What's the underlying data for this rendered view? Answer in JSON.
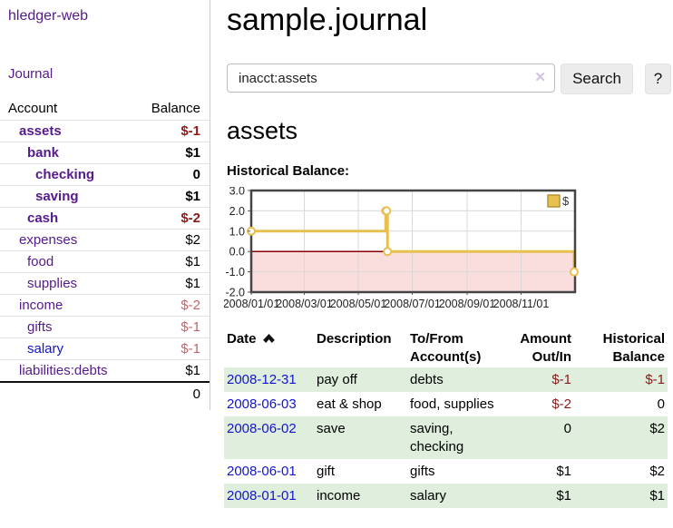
{
  "app": {
    "brand": "hledger-web"
  },
  "colors": {
    "link_visited": "#551a8b",
    "link_unvisited": "#1414cc",
    "negative": "#8b1a1a",
    "negative_muted": "#c0686a",
    "row_stripe": "#dfeedd",
    "chart_line": "#e7c050",
    "chart_negative_region": "#fadddd",
    "chart_zero_line": "#8b0000"
  },
  "sidebar": {
    "nav": {
      "journal": "Journal"
    },
    "tree": {
      "header": {
        "account": "Account",
        "balance": "Balance"
      },
      "accounts": [
        {
          "name": "assets",
          "balance": "$-1",
          "level": 1,
          "selected": true,
          "negative": true
        },
        {
          "name": "bank",
          "balance": "$1",
          "level": 2,
          "selected": true,
          "negative": false
        },
        {
          "name": "checking",
          "balance": "0",
          "level": 3,
          "selected": true,
          "negative": false
        },
        {
          "name": "saving",
          "balance": "$1",
          "level": 3,
          "selected": true,
          "negative": false
        },
        {
          "name": "cash",
          "balance": "$-2",
          "level": 2,
          "selected": true,
          "negative": true
        },
        {
          "name": "expenses",
          "balance": "$2",
          "level": 1,
          "selected": false,
          "negative": false
        },
        {
          "name": "food",
          "balance": "$1",
          "level": 2,
          "selected": false,
          "negative": false
        },
        {
          "name": "supplies",
          "balance": "$1",
          "level": 2,
          "selected": false,
          "negative": false
        },
        {
          "name": "income",
          "balance": "$-2",
          "level": 1,
          "selected": false,
          "negative": true
        },
        {
          "name": "gifts",
          "balance": "$-1",
          "level": 2,
          "selected": false,
          "negative": true
        },
        {
          "name": "salary",
          "balance": "$-1",
          "level": 2,
          "selected": false,
          "negative": true,
          "link_style": "unvisited"
        },
        {
          "name": "liabilities:debts",
          "balance": "$1",
          "level": 1,
          "selected": false,
          "negative": false
        }
      ],
      "total": "0"
    }
  },
  "main": {
    "title": "sample.journal",
    "search": {
      "value": "inacct:assets",
      "clear": "✕",
      "search_label": "Search",
      "help_label": "?"
    },
    "account": {
      "heading": "assets",
      "chart_caption": "Historical Balance:"
    }
  },
  "chart_data": {
    "type": "line",
    "step": true,
    "title": "Historical Balance",
    "series": [
      {
        "name": "$",
        "color": "#e7c050",
        "marker": "open-circle",
        "points": [
          {
            "x": "2008-01-01",
            "y": 1
          },
          {
            "x": "2008-06-01",
            "y": 2
          },
          {
            "x": "2008-06-02",
            "y": 2
          },
          {
            "x": "2008-06-03",
            "y": 0
          },
          {
            "x": "2008-12-31",
            "y": -1
          }
        ]
      }
    ],
    "x_range": [
      "2008-01-01",
      "2009-01-01"
    ],
    "ylim": [
      -2,
      3
    ],
    "yticks": [
      3.0,
      2.0,
      1.0,
      0.0,
      -1.0,
      -2.0
    ],
    "xtick_dates": [
      "2008-01-01",
      "2008-03-01",
      "2008-05-01",
      "2008-07-01",
      "2008-09-01",
      "2008-11-01"
    ],
    "xtick_labels": [
      "2008/01/01",
      "2008/03/01",
      "2008/05/01",
      "2008/07/01",
      "2008/09/01",
      "2008/11/01"
    ],
    "legend": {
      "position": "top-right",
      "label": "$"
    },
    "grid": true,
    "negative_fill": "#fadddd",
    "zero_line": "#8b0000"
  },
  "register": {
    "columns": [
      {
        "label": "Date",
        "sorted": "asc"
      },
      {
        "label": "Description"
      },
      {
        "label": "To/From Account(s)"
      },
      {
        "label": "Amount Out/In"
      },
      {
        "label": "Historical Balance"
      }
    ],
    "rows": [
      {
        "date": "2008-12-31",
        "description": "pay off",
        "accounts": "debts",
        "amount": "$-1",
        "amount_negative": true,
        "balance": "$-1",
        "balance_negative": true
      },
      {
        "date": "2008-06-03",
        "description": "eat & shop",
        "accounts": "food, supplies",
        "amount": "$-2",
        "amount_negative": true,
        "balance": "0",
        "balance_negative": false
      },
      {
        "date": "2008-06-02",
        "description": "save",
        "accounts": "saving, checking",
        "amount": "0",
        "amount_negative": false,
        "balance": "$2",
        "balance_negative": false
      },
      {
        "date": "2008-06-01",
        "description": "gift",
        "accounts": "gifts",
        "amount": "$1",
        "amount_negative": false,
        "balance": "$2",
        "balance_negative": false
      },
      {
        "date": "2008-01-01",
        "description": "income",
        "accounts": "salary",
        "amount": "$1",
        "amount_negative": false,
        "balance": "$1",
        "balance_negative": false
      }
    ]
  }
}
